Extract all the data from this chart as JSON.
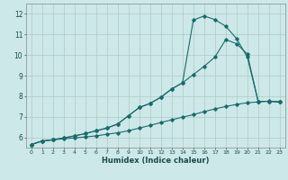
{
  "xlabel": "Humidex (Indice chaleur)",
  "ylabel": "",
  "background_color": "#cde8e8",
  "grid_color": "#b0c8c8",
  "line_color": "#1a6b6b",
  "xlim": [
    -0.5,
    23.5
  ],
  "ylim": [
    5.5,
    12.5
  ],
  "x_ticks": [
    0,
    1,
    2,
    3,
    4,
    5,
    6,
    7,
    8,
    9,
    10,
    11,
    12,
    13,
    14,
    15,
    16,
    17,
    18,
    19,
    20,
    21,
    22,
    23
  ],
  "y_ticks": [
    6,
    7,
    8,
    9,
    10,
    11,
    12
  ],
  "line1_x": [
    0,
    1,
    2,
    3,
    4,
    5,
    6,
    7,
    8,
    9,
    10,
    11,
    12,
    13,
    14,
    15,
    16,
    17,
    18,
    19,
    20,
    21,
    22,
    23
  ],
  "line1_y": [
    5.65,
    5.82,
    5.88,
    5.93,
    5.97,
    6.02,
    6.07,
    6.15,
    6.22,
    6.32,
    6.45,
    6.58,
    6.72,
    6.85,
    6.98,
    7.1,
    7.25,
    7.38,
    7.5,
    7.6,
    7.68,
    7.72,
    7.76,
    7.72
  ],
  "line2_x": [
    0,
    1,
    2,
    3,
    4,
    5,
    6,
    7,
    8,
    9,
    10,
    11,
    12,
    13,
    14,
    15,
    16,
    17,
    18,
    19,
    20,
    21,
    22,
    23
  ],
  "line2_y": [
    5.65,
    5.82,
    5.88,
    5.97,
    6.07,
    6.18,
    6.32,
    6.45,
    6.65,
    7.05,
    7.45,
    7.65,
    7.95,
    8.35,
    8.65,
    9.05,
    9.45,
    9.9,
    10.75,
    10.55,
    10.05,
    7.75,
    7.75,
    7.72
  ],
  "line3_x": [
    0,
    1,
    2,
    3,
    4,
    5,
    6,
    7,
    8,
    9,
    10,
    11,
    12,
    13,
    14,
    15,
    16,
    17,
    18,
    19,
    20,
    21,
    22,
    23
  ],
  "line3_y": [
    5.65,
    5.82,
    5.88,
    5.97,
    6.07,
    6.18,
    6.32,
    6.45,
    6.65,
    7.05,
    7.45,
    7.65,
    7.95,
    8.35,
    8.65,
    11.7,
    11.9,
    11.72,
    11.4,
    10.8,
    9.9,
    7.75,
    7.75,
    7.72
  ]
}
